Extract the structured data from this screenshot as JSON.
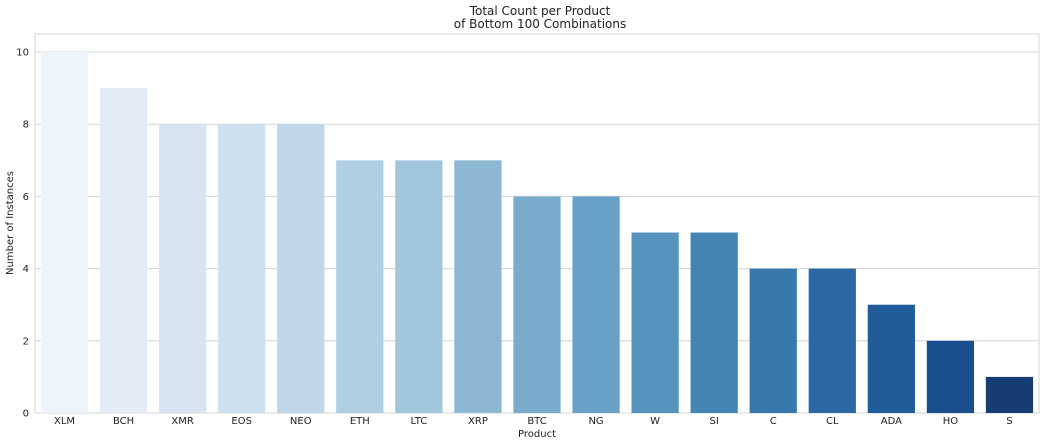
{
  "chart_data": {
    "type": "bar",
    "title_line1": "Total Count per Product",
    "title_line2": "of Bottom 100 Combinations",
    "xlabel": "Product",
    "ylabel": "Number of Instances",
    "categories": [
      "XLM",
      "BCH",
      "XMR",
      "EOS",
      "NEO",
      "ETH",
      "LTC",
      "XRP",
      "BTC",
      "NG",
      "W",
      "SI",
      "C",
      "CL",
      "ADA",
      "HO",
      "S"
    ],
    "values": [
      10,
      9,
      8,
      8,
      8,
      7,
      7,
      7,
      6,
      6,
      5,
      5,
      4,
      4,
      3,
      2,
      1
    ],
    "colors": [
      "#eef4fc",
      "#e2ebf6",
      "#d7e5f2",
      "#cde0ef",
      "#bfd7e8",
      "#b0cfe3",
      "#9fc6db",
      "#8db8d3",
      "#7aaacc",
      "#68a0c8",
      "#5793bd",
      "#4585b6",
      "#3978ad",
      "#2c69a4",
      "#1f5c99",
      "#194f8c",
      "#173c74"
    ],
    "ylim": [
      0,
      10.5
    ],
    "yticks": [
      0,
      2,
      4,
      6,
      8,
      10
    ],
    "grid": true
  }
}
